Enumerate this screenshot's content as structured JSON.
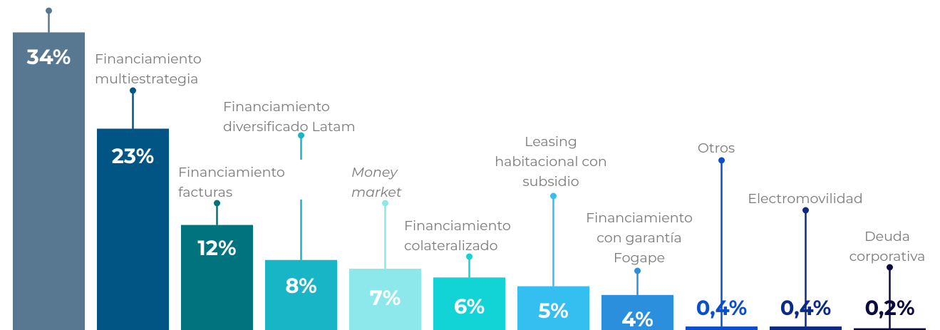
{
  "chart_data": {
    "type": "bar",
    "categories": [
      null,
      "Financiamiento\nmultiestrategia",
      "Financiamiento\nfacturas",
      "Financiamiento\ndiversificado Latam",
      "Money\nmarket",
      "Financiamiento\ncolateralizado",
      "Leasing\nhabitacional con\nsubsidio",
      "Financiamiento\ncon garantía\nFogape",
      "Otros",
      "Electromovilidad",
      "Deuda\ncorporativa"
    ],
    "values": [
      34,
      23,
      12,
      8,
      7,
      6,
      5,
      4,
      0.4,
      0.4,
      0.2
    ],
    "value_labels": [
      "34%",
      "23%",
      "12%",
      "8%",
      "7%",
      "6%",
      "5%",
      "4%",
      "0,4%",
      "0,4%",
      "0,2%"
    ],
    "colors": [
      "#587891",
      "#005585",
      "#00737f",
      "#17b5c6",
      "#8ce8ea",
      "#12d3d6",
      "#35bff0",
      "#2c8fde",
      "#0a4ecb",
      "#0a2a86",
      "#0a0a40"
    ],
    "ylim": [
      0,
      37.7
    ]
  }
}
